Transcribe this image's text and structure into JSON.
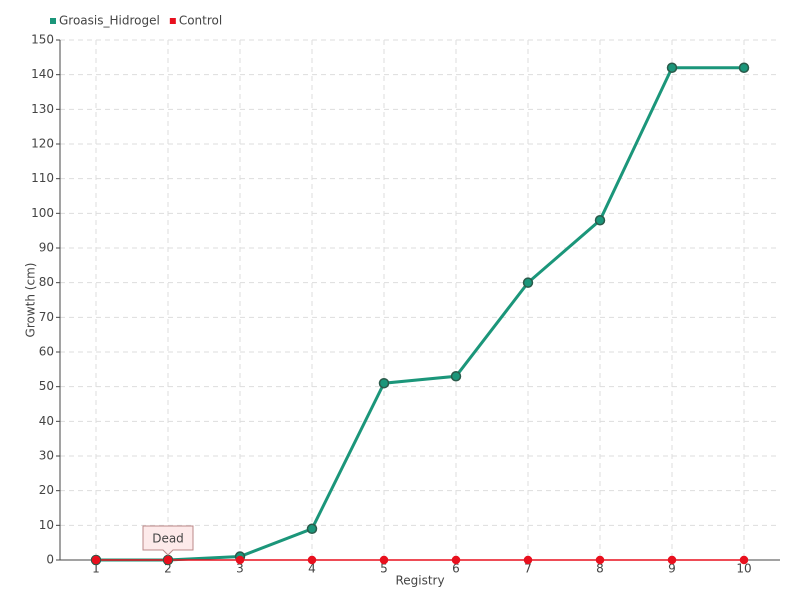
{
  "chart_data": {
    "type": "line",
    "x_label": "Registry",
    "y_label": "Growth (cm)",
    "categories": [
      "1",
      "2",
      "3",
      "4",
      "5",
      "6",
      "7",
      "8",
      "9",
      "10"
    ],
    "series": [
      {
        "name": "Groasis_Hidrogel",
        "color": "#1b967a",
        "values": [
          0,
          0,
          1,
          9,
          51,
          53,
          80,
          98,
          142,
          142
        ]
      },
      {
        "name": "Control",
        "color": "#e8101e",
        "values": [
          0,
          0,
          0,
          0,
          0,
          0,
          0,
          0,
          0,
          0
        ]
      }
    ],
    "annotations": [
      {
        "text": "Dead",
        "x": "2",
        "y": 0
      }
    ],
    "ylim": [
      0,
      150
    ],
    "yticks": [
      0,
      10,
      20,
      30,
      40,
      50,
      60,
      70,
      80,
      90,
      100,
      110,
      120,
      130,
      140,
      150
    ],
    "grid": true,
    "legend": "top-left"
  }
}
